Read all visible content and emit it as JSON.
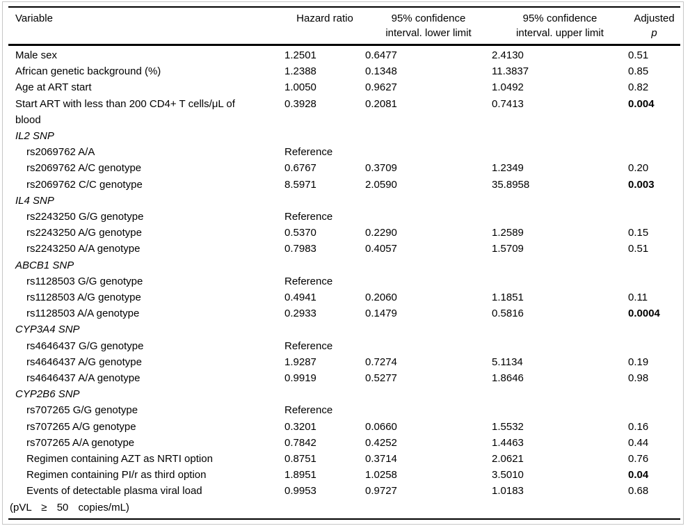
{
  "table": {
    "header": {
      "variable": "Variable",
      "hazard_ratio": "Hazard ratio",
      "ci_lower_line1": "95% confidence",
      "ci_lower_line2": "interval. lower limit",
      "ci_upper_line1": "95% confidence",
      "ci_upper_line2": "interval. upper limit",
      "adjusted_line1": "Adjusted",
      "adjusted_line2": "p"
    },
    "rows": [
      {
        "type": "plain",
        "variable": "Male sex",
        "hazard_ratio": "1.2501",
        "ci_lower": "0.6477",
        "ci_upper": "2.4130",
        "p": "0.51",
        "p_bold": false
      },
      {
        "type": "plain",
        "variable": "African genetic background (%)",
        "hazard_ratio": "1.2388",
        "ci_lower": "0.1348",
        "ci_upper": "11.3837",
        "p": "0.85",
        "p_bold": false
      },
      {
        "type": "plain",
        "variable": "Age at ART start",
        "hazard_ratio": "1.0050",
        "ci_lower": "0.9627",
        "ci_upper": "1.0492",
        "p": "0.82",
        "p_bold": false
      },
      {
        "type": "plain",
        "variable": "Start ART with less than 200 CD4+ T cells/μL of",
        "variable_line2": "blood",
        "line2_wide_spacing": false,
        "hazard_ratio": "0.3928",
        "ci_lower": "0.2081",
        "ci_upper": "0.7413",
        "p": "0.004",
        "p_bold": true
      },
      {
        "type": "section",
        "variable": "IL2 SNP"
      },
      {
        "type": "indent",
        "variable": "rs2069762 A/A",
        "hazard_ratio": "Reference"
      },
      {
        "type": "indent",
        "variable": "rs2069762 A/C genotype",
        "hazard_ratio": "0.6767",
        "ci_lower": "0.3709",
        "ci_upper": "1.2349",
        "p": "0.20",
        "p_bold": false
      },
      {
        "type": "indent",
        "variable": "rs2069762 C/C genotype",
        "hazard_ratio": "8.5971",
        "ci_lower": "2.0590",
        "ci_upper": "35.8958",
        "p": "0.003",
        "p_bold": true
      },
      {
        "type": "section",
        "variable": "IL4 SNP"
      },
      {
        "type": "indent",
        "variable": "rs2243250 G/G genotype",
        "hazard_ratio": "Reference"
      },
      {
        "type": "indent",
        "variable": "rs2243250 A/G genotype",
        "hazard_ratio": "0.5370",
        "ci_lower": "0.2290",
        "ci_upper": "1.2589",
        "p": "0.15",
        "p_bold": false
      },
      {
        "type": "indent",
        "variable": "rs2243250 A/A genotype",
        "hazard_ratio": "0.7983",
        "ci_lower": "0.4057",
        "ci_upper": "1.5709",
        "p": "0.51",
        "p_bold": false
      },
      {
        "type": "section",
        "variable": "ABCB1 SNP"
      },
      {
        "type": "indent",
        "variable": "rs1128503 G/G genotype",
        "hazard_ratio": "Reference"
      },
      {
        "type": "indent",
        "variable": "rs1128503 A/G genotype",
        "hazard_ratio": "0.4941",
        "ci_lower": "0.2060",
        "ci_upper": "1.1851",
        "p": "0.11",
        "p_bold": false
      },
      {
        "type": "indent",
        "variable": "rs1128503 A/A genotype",
        "hazard_ratio": "0.2933",
        "ci_lower": "0.1479",
        "ci_upper": "0.5816",
        "p": "0.0004",
        "p_bold": true
      },
      {
        "type": "section",
        "variable": "CYP3A4 SNP"
      },
      {
        "type": "indent",
        "variable": "rs4646437 G/G genotype",
        "hazard_ratio": "Reference"
      },
      {
        "type": "indent",
        "variable": "rs4646437 A/G genotype",
        "hazard_ratio": "1.9287",
        "ci_lower": "0.7274",
        "ci_upper": "5.1134",
        "p": "0.19",
        "p_bold": false
      },
      {
        "type": "indent",
        "variable": "rs4646437 A/A genotype",
        "hazard_ratio": "0.9919",
        "ci_lower": "0.5277",
        "ci_upper": "1.8646",
        "p": "0.98",
        "p_bold": false
      },
      {
        "type": "section",
        "variable": "CYP2B6 SNP"
      },
      {
        "type": "indent",
        "variable": "rs707265 G/G genotype",
        "hazard_ratio": "Reference"
      },
      {
        "type": "indent",
        "variable": "rs707265 A/G genotype",
        "hazard_ratio": "0.3201",
        "ci_lower": "0.0660",
        "ci_upper": "1.5532",
        "p": "0.16",
        "p_bold": false
      },
      {
        "type": "indent",
        "variable": "rs707265 A/A genotype",
        "hazard_ratio": "0.7842",
        "ci_lower": "0.4252",
        "ci_upper": "1.4463",
        "p": "0.44",
        "p_bold": false
      },
      {
        "type": "indent",
        "variable": "Regimen containing AZT as NRTI option",
        "hazard_ratio": "0.8751",
        "ci_lower": "0.3714",
        "ci_upper": "2.0621",
        "p": "0.76",
        "p_bold": false
      },
      {
        "type": "indent",
        "variable": "Regimen containing PI/r as third option",
        "hazard_ratio": "1.8951",
        "ci_lower": "1.0258",
        "ci_upper": "3.5010",
        "p": "0.04",
        "p_bold": true
      },
      {
        "type": "indent",
        "variable": "Events of detectable plasma viral load",
        "variable_line2": "(pVL ≥ 50 copies/mL)",
        "line2_wide_spacing": true,
        "hazard_ratio": "0.9953",
        "ci_lower": "0.9727",
        "ci_upper": "1.0183",
        "p": "0.68",
        "p_bold": false
      }
    ]
  }
}
